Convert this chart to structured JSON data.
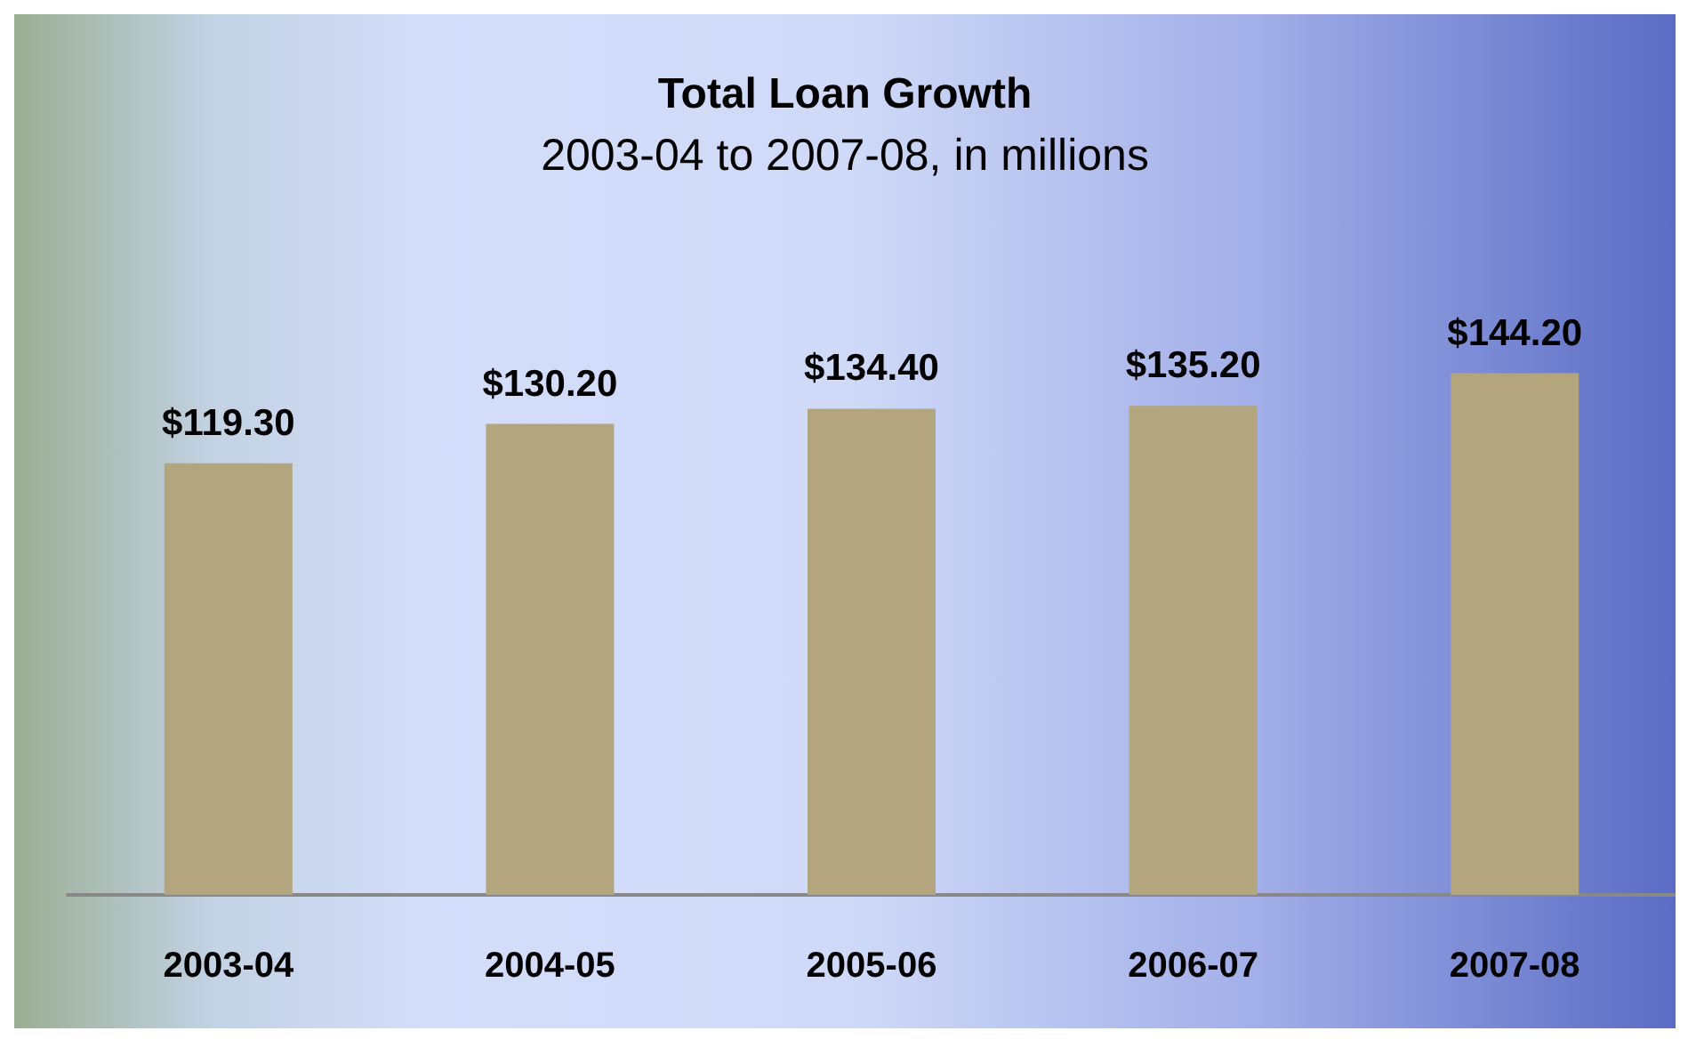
{
  "chart_data": {
    "type": "bar",
    "title": "Total Loan Growth",
    "subtitle": "2003-04 to 2007-08, in millions",
    "categories": [
      "2003-04",
      "2004-05",
      "2005-06",
      "2006-07",
      "2007-08"
    ],
    "values": [
      119.3,
      130.2,
      134.4,
      135.2,
      144.2
    ],
    "color": "#b3a67f",
    "value_labels": [
      "$119.30",
      "$130.20",
      "$134.40",
      "$135.20",
      "$144.20"
    ]
  }
}
